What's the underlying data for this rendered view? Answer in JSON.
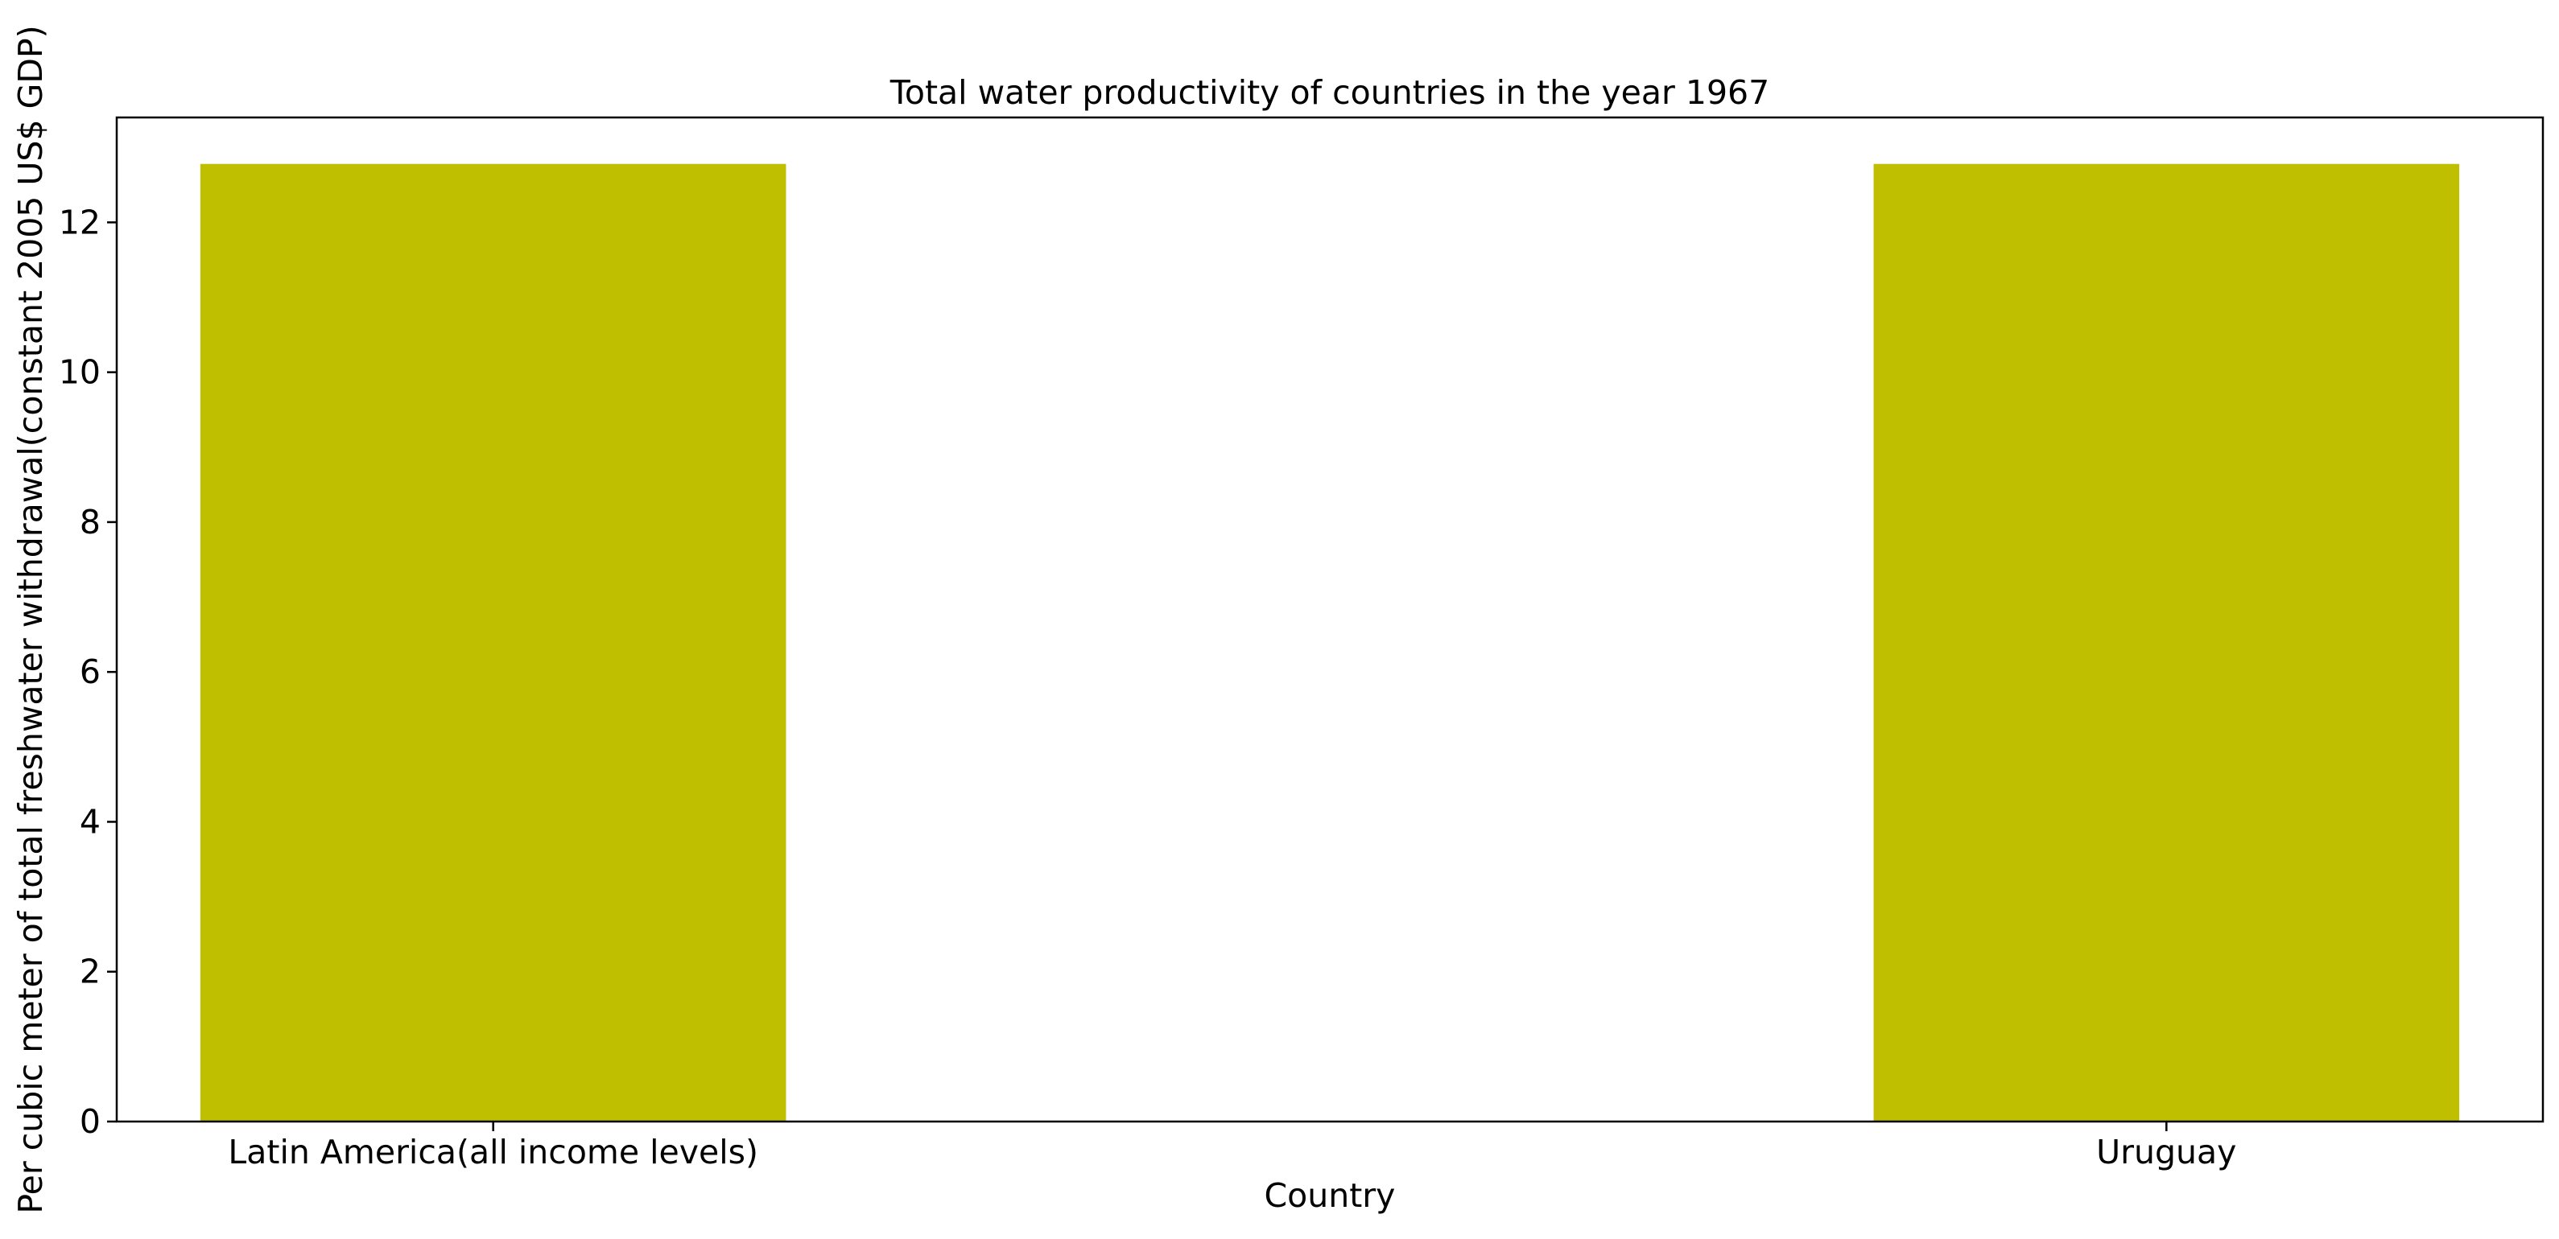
{
  "chart_data": {
    "type": "bar",
    "title": "Total water productivity of countries in the year 1967",
    "xlabel": "Country",
    "ylabel": "Per cubic meter of total freshwater withdrawal(constant 2005 US$ GDP)",
    "categories": [
      "Latin America(all income levels)",
      "Uruguay"
    ],
    "values": [
      12.78,
      12.78
    ],
    "ylim": [
      0,
      13.4
    ],
    "yticks": [
      0,
      2,
      4,
      6,
      8,
      10,
      12
    ],
    "bar_color": "#bfbf00",
    "grid": false,
    "legend": "none"
  }
}
